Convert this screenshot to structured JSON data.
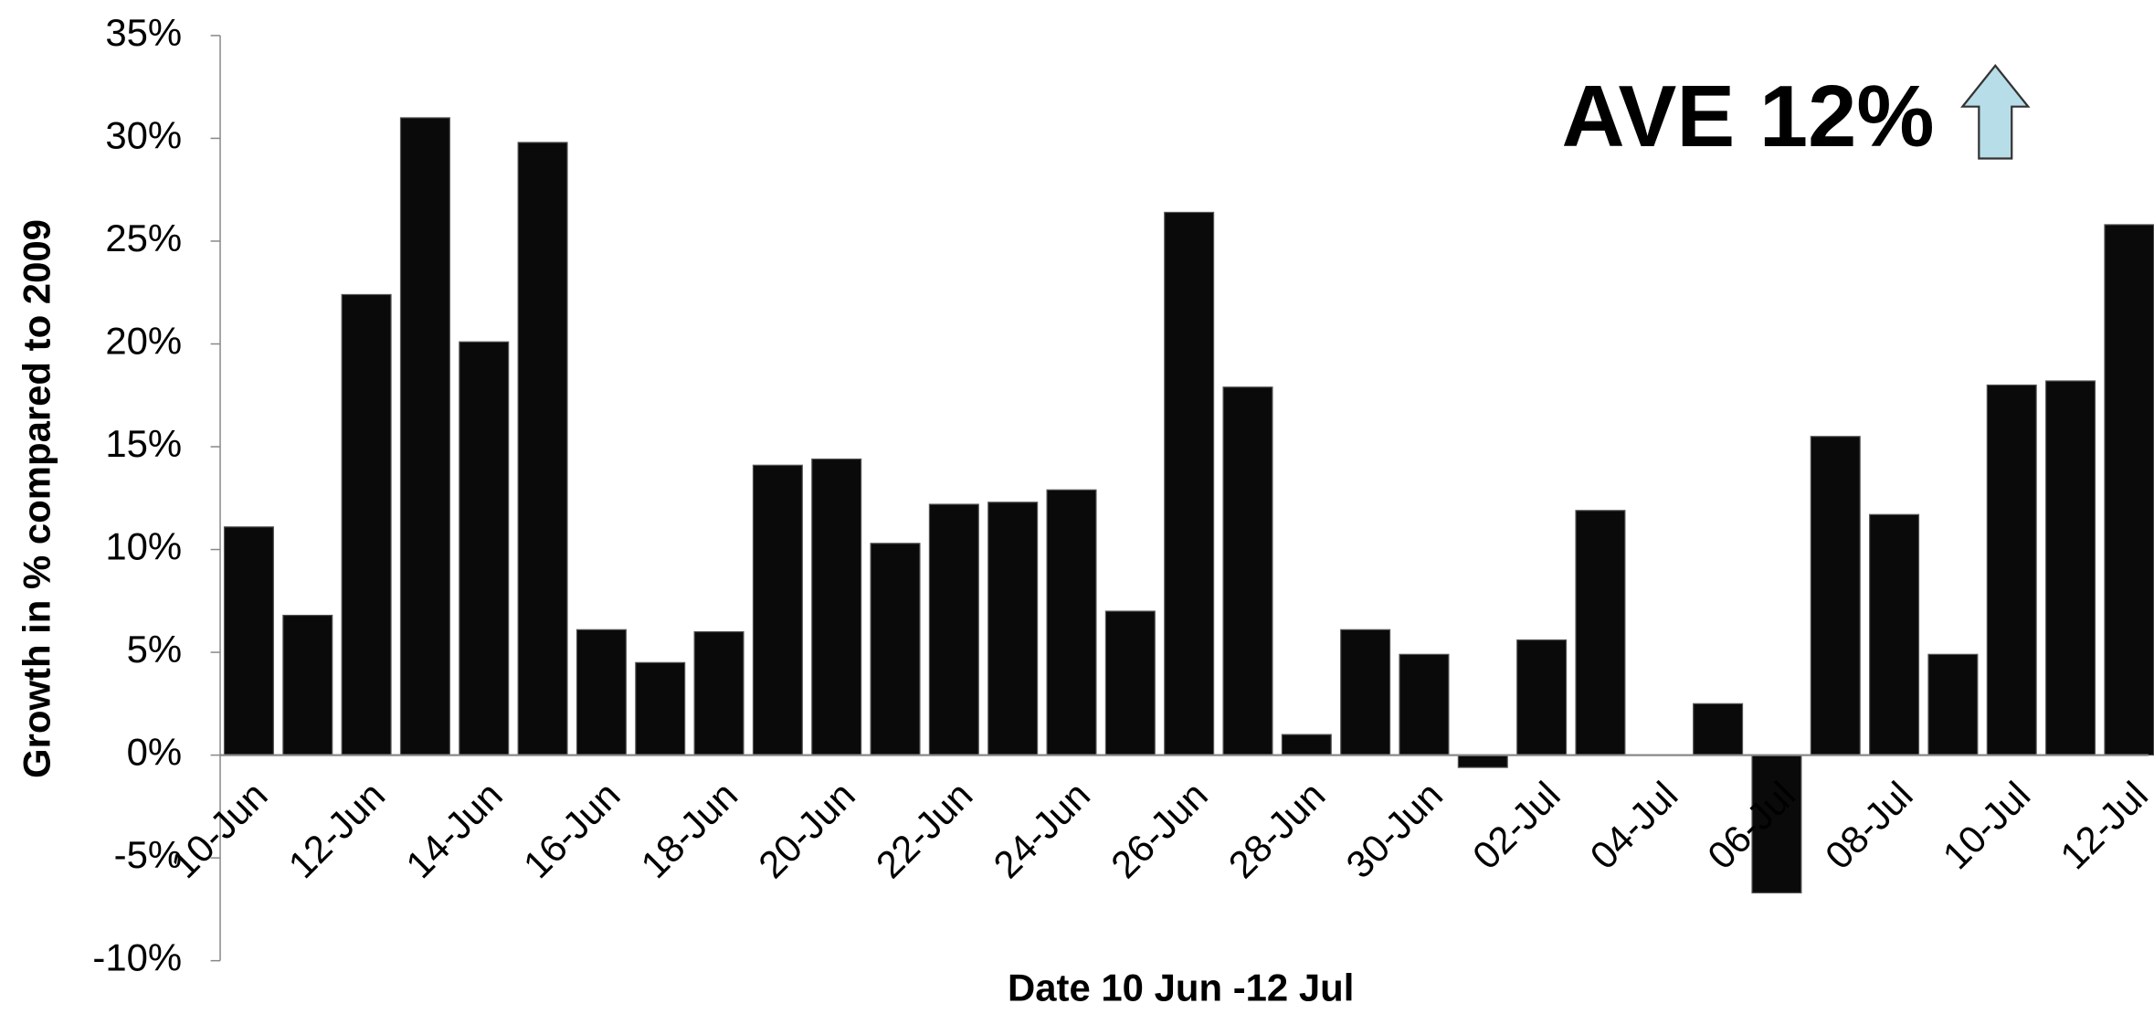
{
  "chart_data": {
    "type": "bar",
    "annotation": "AVE 12%",
    "xlabel": "Date 10 Jun -12 Jul",
    "ylabel": "Growth in % compared to 2009",
    "categories": [
      "10-Jun",
      null,
      "12-Jun",
      null,
      "14-Jun",
      null,
      "16-Jun",
      null,
      "18-Jun",
      null,
      "20-Jun",
      null,
      "22-Jun",
      null,
      "24-Jun",
      null,
      "26-Jun",
      null,
      "28-Jun",
      null,
      "30-Jun",
      null,
      "02-Jul",
      null,
      "04-Jul",
      null,
      "06-Jul",
      null,
      "08-Jul",
      null,
      "10-Jul",
      null,
      "12-Jul"
    ],
    "values": [
      11.1,
      6.8,
      22.4,
      31.0,
      20.1,
      29.8,
      6.1,
      4.5,
      6.0,
      14.1,
      14.4,
      10.3,
      12.2,
      12.3,
      12.9,
      7.0,
      26.4,
      17.9,
      1.0,
      6.1,
      4.9,
      -0.6,
      5.6,
      11.9,
      null,
      2.5,
      -6.7,
      15.5,
      11.7,
      4.9,
      18.0,
      18.2,
      25.8
    ],
    "color": "#0a0a0a",
    "ylim": [
      -10,
      35
    ],
    "yticks": [
      {
        "value": -10,
        "label": "-10%"
      },
      {
        "value": -5,
        "label": "-5%"
      },
      {
        "value": 0,
        "label": "0%"
      },
      {
        "value": 5,
        "label": "5%"
      },
      {
        "value": 10,
        "label": "10%"
      },
      {
        "value": 15,
        "label": "15%"
      },
      {
        "value": 20,
        "label": "20%"
      },
      {
        "value": 25,
        "label": "25%"
      },
      {
        "value": 30,
        "label": "30%"
      },
      {
        "value": 35,
        "label": "35%"
      }
    ],
    "grid": false
  }
}
